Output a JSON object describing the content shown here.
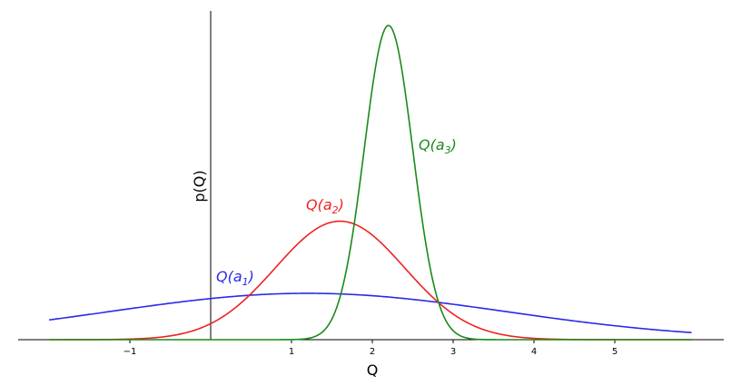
{
  "chart_data": {
    "type": "line",
    "title": "",
    "xlabel": "Q",
    "ylabel": "p(Q)",
    "xlim": [
      -2.0,
      6.3
    ],
    "ylim": [
      0,
      1.22
    ],
    "xticks": [
      -1,
      1,
      2,
      3,
      4,
      5
    ],
    "grid": false,
    "series": [
      {
        "name_base": "Q(a",
        "name_sub": "1",
        "name_end": ")",
        "color": "#2a2ae8",
        "distribution": "normal",
        "mean": 1.2,
        "sd": 2.45,
        "peak": 0.18,
        "x_range": [
          -2.0,
          5.95
        ]
      },
      {
        "name_base": "Q(a",
        "name_sub": "2",
        "name_end": ")",
        "color": "#ee2222",
        "distribution": "normal",
        "mean": 1.6,
        "sd": 0.8,
        "peak": 0.46,
        "x_range": [
          -2.0,
          5.95
        ]
      },
      {
        "name_base": "Q(a",
        "name_sub": "3",
        "name_end": ")",
        "color": "#1a8a1a",
        "distribution": "normal",
        "mean": 2.2,
        "sd": 0.3,
        "peak": 1.22,
        "x_range": [
          -2.0,
          5.95
        ]
      }
    ]
  }
}
